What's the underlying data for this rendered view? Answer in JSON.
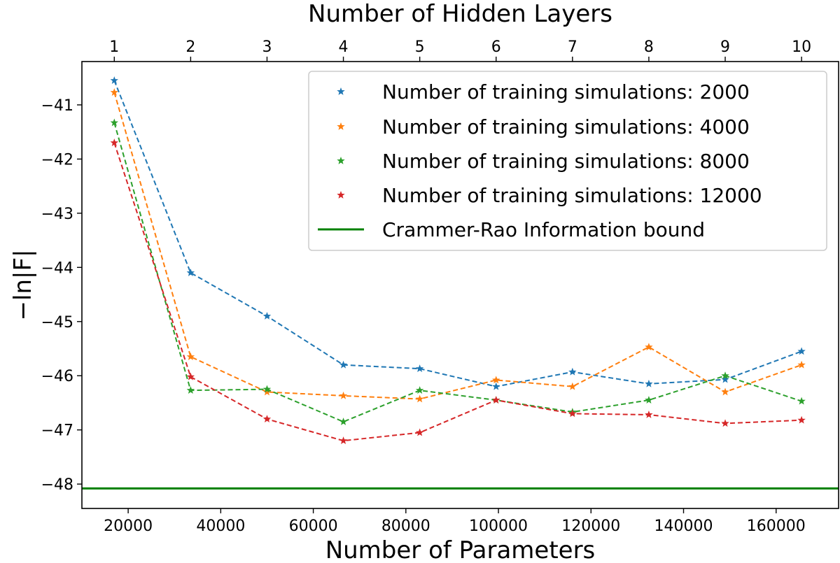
{
  "chart_data": {
    "type": "line",
    "xlabel": "Number of Parameters",
    "ylabel": "−ln|F|",
    "x2label": "Number of Hidden Layers",
    "xlim": [
      10000,
      173500
    ],
    "ylim": [
      -48.45,
      -40.2
    ],
    "x_ticks": [
      20000,
      40000,
      60000,
      80000,
      100000,
      120000,
      140000,
      160000
    ],
    "x_tick_labels": [
      "20000",
      "40000",
      "60000",
      "80000",
      "100000",
      "120000",
      "140000",
      "160000"
    ],
    "y_ticks": [
      -41,
      -42,
      -43,
      -44,
      -45,
      -46,
      -47,
      -48
    ],
    "y_tick_labels": [
      "−41",
      "−42",
      "−43",
      "−44",
      "−45",
      "−46",
      "−47",
      "−48"
    ],
    "x2_tick_labels": [
      "1",
      "2",
      "3",
      "4",
      "5",
      "6",
      "7",
      "8",
      "9",
      "10"
    ],
    "x": [
      17000,
      33500,
      50000,
      66500,
      83000,
      99500,
      116000,
      132500,
      149000,
      165500
    ],
    "series": [
      {
        "name": "Number of training simulations: 2000",
        "color": "#1f77b4",
        "values": [
          -40.55,
          -44.1,
          -44.9,
          -45.8,
          -45.87,
          -46.2,
          -45.93,
          -46.15,
          -46.07,
          -45.55
        ]
      },
      {
        "name": "Number of training simulations: 4000",
        "color": "#ff7f0e",
        "values": [
          -40.77,
          -45.65,
          -46.3,
          -46.37,
          -46.43,
          -46.08,
          -46.2,
          -45.47,
          -46.3,
          -45.8
        ]
      },
      {
        "name": "Number of training simulations: 8000",
        "color": "#2ca02c",
        "values": [
          -41.33,
          -46.27,
          -46.25,
          -46.85,
          -46.27,
          -46.45,
          -46.67,
          -46.45,
          -46.0,
          -46.47
        ]
      },
      {
        "name": "Number of training simulations: 12000",
        "color": "#d62728",
        "values": [
          -41.7,
          -46.02,
          -46.8,
          -47.2,
          -47.05,
          -46.45,
          -46.7,
          -46.72,
          -46.88,
          -46.82
        ]
      }
    ],
    "reference_line": {
      "name": "Crammer-Rao Information bound",
      "value": -48.08,
      "color": "#008000"
    },
    "grid": false,
    "legend_placement": "top-right"
  }
}
